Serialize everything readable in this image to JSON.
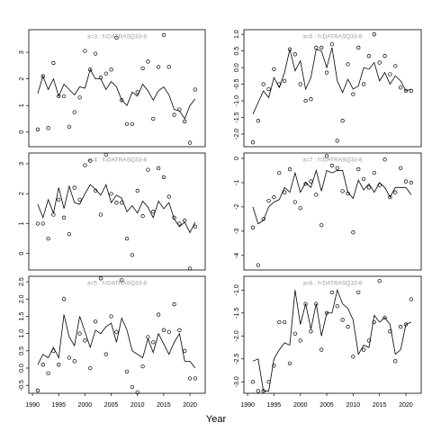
{
  "xlabel": "Year",
  "chart_data": [
    {
      "type": "line",
      "title": "a=3 : f=DATRASQ33-8",
      "x": [
        1991,
        1992,
        1993,
        1994,
        1995,
        1996,
        1997,
        1998,
        1999,
        2000,
        2001,
        2002,
        2003,
        2004,
        2005,
        2006,
        2007,
        2008,
        2009,
        2010,
        2011,
        2012,
        2013,
        2014,
        2015,
        2016,
        2017,
        2018,
        2019,
        2020,
        2021
      ],
      "xlim": [
        1989.3,
        2022.9
      ],
      "ylim": [
        -0.55,
        3.85
      ],
      "yticks": [
        0,
        1,
        2,
        3
      ],
      "series": [
        {
          "mark": "point",
          "color": "#000000",
          "values": [
            0.1,
            2.1,
            0.15,
            2.6,
            1.35,
            1.35,
            0.2,
            0.75,
            1.3,
            3.05,
            2.35,
            2.95,
            2.05,
            2.2,
            2.35,
            3.55,
            1.2,
            0.3,
            0.3,
            1.5,
            2.4,
            2.65,
            0.5,
            2.45,
            3.65,
            2.45,
            0.65,
            0.85,
            0.4,
            -0.4,
            1.6
          ]
        },
        {
          "mark": "line",
          "color": "#000000",
          "values": [
            1.45,
            2.1,
            1.6,
            2.0,
            1.35,
            1.8,
            1.6,
            1.4,
            1.7,
            1.65,
            2.35,
            2.0,
            2.0,
            1.6,
            1.9,
            1.7,
            1.2,
            1.0,
            1.5,
            1.35,
            1.8,
            1.55,
            1.2,
            1.55,
            1.7,
            1.4,
            0.85,
            0.8,
            0.5,
            1.0,
            1.25
          ]
        }
      ]
    },
    {
      "type": "line",
      "title": "a=6 : f=DATRASQ33-8",
      "x": [
        1991,
        1992,
        1993,
        1994,
        1995,
        1996,
        1997,
        1998,
        1999,
        2000,
        2001,
        2002,
        2003,
        2004,
        2005,
        2006,
        2007,
        2008,
        2009,
        2010,
        2011,
        2012,
        2013,
        2014,
        2015,
        2016,
        2017,
        2018,
        2019,
        2020,
        2021
      ],
      "xlim": [
        1989.3,
        2022.9
      ],
      "ylim": [
        -2.38,
        1.14
      ],
      "yticks": [
        {
          "value": 1,
          "label": "1.0"
        },
        0.5,
        {
          "value": 0,
          "label": "0.0"
        },
        -0.5,
        {
          "value": -1,
          "label": "-1.0"
        },
        -1.5,
        {
          "value": -2,
          "label": "-2.0"
        }
      ],
      "series": [
        {
          "mark": "point",
          "color": "#000000",
          "values": [
            -2.25,
            -1.6,
            -0.5,
            -0.65,
            -0.05,
            -0.5,
            -0.4,
            0.55,
            0.4,
            -0.5,
            -1.0,
            -0.95,
            0.6,
            0.6,
            -0.15,
            0.7,
            -2.2,
            -1.6,
            0.1,
            -0.8,
            0.6,
            -0.5,
            0.35,
            1.0,
            0.15,
            0.35,
            -0.2,
            0.05,
            -0.6,
            -0.7,
            -0.7
          ]
        },
        {
          "mark": "line",
          "color": "#000000",
          "values": [
            -1.4,
            -1.05,
            -0.7,
            -0.9,
            -0.3,
            -0.6,
            -0.15,
            0.55,
            -0.1,
            0.2,
            -0.65,
            -0.3,
            0.55,
            0.5,
            0.0,
            0.6,
            -0.4,
            -0.75,
            -0.35,
            -0.65,
            -0.55,
            0.0,
            -0.05,
            0.15,
            -0.4,
            -0.15,
            -0.5,
            -0.25,
            -0.4,
            -0.7,
            -0.65
          ]
        }
      ]
    },
    {
      "type": "line",
      "title": "a=4 : f=DATRASQ33-8",
      "x": [
        1991,
        1992,
        1993,
        1994,
        1995,
        1996,
        1997,
        1998,
        1999,
        2000,
        2001,
        2002,
        2003,
        2004,
        2005,
        2006,
        2007,
        2008,
        2009,
        2010,
        2011,
        2012,
        2013,
        2014,
        2015,
        2016,
        2017,
        2018,
        2019,
        2020,
        2021
      ],
      "xlim": [
        1989.3,
        2022.9
      ],
      "ylim": [
        -0.55,
        3.36
      ],
      "yticks": [
        0,
        1,
        2,
        3
      ],
      "series": [
        {
          "mark": "point",
          "color": "#000000",
          "values": [
            1.0,
            1.0,
            0.5,
            1.3,
            1.8,
            1.2,
            0.65,
            2.2,
            1.8,
            2.95,
            3.1,
            2.1,
            1.3,
            3.3,
            2.0,
            1.7,
            1.7,
            0.5,
            -0.05,
            2.1,
            1.25,
            2.8,
            1.4,
            2.85,
            2.55,
            1.9,
            1.2,
            1.0,
            1.1,
            -0.5,
            0.9
          ]
        },
        {
          "mark": "line",
          "color": "#000000",
          "values": [
            1.65,
            1.2,
            1.8,
            1.35,
            2.2,
            1.5,
            2.25,
            1.7,
            1.65,
            2.0,
            2.3,
            2.15,
            1.95,
            2.3,
            1.7,
            1.95,
            1.85,
            1.4,
            1.6,
            1.35,
            1.75,
            1.55,
            1.2,
            1.75,
            1.5,
            1.7,
            1.15,
            0.9,
            1.05,
            0.7,
            1.05
          ]
        }
      ]
    },
    {
      "type": "line",
      "title": "a=7 : f=DATRASQ33-8",
      "x": [
        1991,
        1992,
        1993,
        1994,
        1995,
        1996,
        1997,
        1998,
        1999,
        2000,
        2001,
        2002,
        2003,
        2004,
        2005,
        2006,
        2007,
        2008,
        2009,
        2010,
        2011,
        2012,
        2013,
        2014,
        2015,
        2016,
        2017,
        2018,
        2019,
        2020,
        2021
      ],
      "xlim": [
        1989.3,
        2022.9
      ],
      "ylim": [
        -4.6,
        0.22
      ],
      "yticks": [
        0,
        -1,
        -2,
        -3,
        -4
      ],
      "series": [
        {
          "mark": "point",
          "color": "#000000",
          "values": [
            -2.85,
            -4.4,
            -2.5,
            -1.75,
            -1.6,
            -0.6,
            -1.4,
            -0.45,
            -1.8,
            -2.05,
            -1.05,
            -0.95,
            -1.5,
            -2.75,
            0.1,
            -0.3,
            -0.4,
            -1.35,
            -1.45,
            -3.05,
            -0.45,
            -0.85,
            -1.2,
            -0.6,
            -1.1,
            -0.05,
            -1.6,
            -1.4,
            -0.4,
            -0.95,
            -1.0
          ]
        },
        {
          "mark": "line",
          "color": "#000000",
          "values": [
            -2.0,
            -2.7,
            -2.55,
            -2.0,
            -1.8,
            -1.7,
            -1.2,
            -1.4,
            -0.6,
            -1.4,
            -1.0,
            -1.2,
            -0.5,
            -1.35,
            -0.5,
            -0.6,
            -0.5,
            -0.5,
            -1.4,
            -1.65,
            -0.9,
            -1.3,
            -1.05,
            -1.4,
            -1.0,
            -1.2,
            -1.6,
            -1.2,
            -1.2,
            -1.2,
            -1.5
          ]
        }
      ]
    },
    {
      "type": "line",
      "title": "a=5 : f=DATRASQ33-8",
      "x": [
        1991,
        1992,
        1993,
        1994,
        1995,
        1996,
        1997,
        1998,
        1999,
        2000,
        2001,
        2002,
        2003,
        2004,
        2005,
        2006,
        2007,
        2008,
        2009,
        2010,
        2011,
        2012,
        2013,
        2014,
        2015,
        2016,
        2017,
        2018,
        2019,
        2020,
        2021
      ],
      "xlim": [
        1989.3,
        2022.9
      ],
      "ylim": [
        -0.73,
        2.66
      ],
      "yticks": [
        -0.5,
        {
          "value": 0,
          "label": "0.0"
        },
        0.5,
        {
          "value": 1,
          "label": "1.0"
        },
        1.5,
        {
          "value": 2,
          "label": "2.0"
        },
        2.5
      ],
      "xticks": [
        1990,
        1995,
        2000,
        2005,
        2010,
        2015,
        2020
      ],
      "series": [
        {
          "mark": "point",
          "color": "#000000",
          "values": [
            -0.65,
            0.1,
            -0.15,
            0.5,
            0.1,
            2.0,
            0.3,
            0.2,
            1.0,
            0.8,
            0.0,
            1.35,
            2.6,
            0.4,
            1.5,
            1.05,
            2.55,
            -0.1,
            -0.55,
            -0.7,
            0.05,
            0.9,
            0.75,
            1.55,
            1.1,
            1.05,
            1.85,
            1.1,
            0.5,
            -0.3,
            -0.3
          ]
        },
        {
          "mark": "line",
          "color": "#000000",
          "values": [
            0.1,
            0.4,
            0.3,
            0.6,
            0.3,
            1.55,
            0.9,
            0.65,
            1.5,
            1.05,
            0.6,
            1.1,
            1.0,
            1.2,
            1.3,
            0.75,
            1.45,
            1.1,
            0.5,
            0.4,
            0.3,
            0.85,
            0.45,
            1.0,
            0.7,
            0.4,
            0.75,
            1.0,
            0.2,
            0.2,
            0.0
          ]
        }
      ]
    },
    {
      "type": "line",
      "title": "a=8 : f=DATRASQ33-8",
      "x": [
        1991,
        1992,
        1993,
        1994,
        1995,
        1996,
        1997,
        1998,
        1999,
        2000,
        2001,
        2002,
        2003,
        2004,
        2005,
        2006,
        2007,
        2008,
        2009,
        2010,
        2011,
        2012,
        2013,
        2014,
        2015,
        2016,
        2017,
        2018,
        2019,
        2020,
        2021
      ],
      "xlim": [
        1989.3,
        2022.9
      ],
      "ylim": [
        -3.25,
        -0.7
      ],
      "yticks": [
        {
          "value": -1,
          "label": "-1.0"
        },
        -1.5,
        {
          "value": -2,
          "label": "-2.0"
        },
        -2.5,
        {
          "value": -3,
          "label": "-3.0"
        }
      ],
      "xticks": [
        1990,
        1995,
        2000,
        2005,
        2010,
        2015,
        2020
      ],
      "series": [
        {
          "mark": "point",
          "color": "#000000",
          "values": [
            -3.0,
            -3.2,
            -3.2,
            -3.0,
            -2.65,
            -1.7,
            -1.7,
            -2.6,
            -1.95,
            -2.1,
            -1.3,
            -1.9,
            -1.3,
            -2.3,
            -1.5,
            -1.05,
            -1.35,
            -1.65,
            -1.8,
            -2.45,
            -1.05,
            -2.3,
            -2.1,
            -1.7,
            -0.8,
            -1.6,
            -1.9,
            -2.55,
            -1.8,
            -1.75,
            -1.2
          ]
        },
        {
          "mark": "line",
          "color": "#000000",
          "values": [
            -2.55,
            -2.5,
            -3.2,
            -3.2,
            -2.5,
            -2.3,
            -2.15,
            -2.2,
            -1.0,
            -1.75,
            -1.3,
            -1.85,
            -1.3,
            -2.0,
            -1.5,
            -1.5,
            -1.0,
            -1.3,
            -1.4,
            -1.65,
            -2.4,
            -2.2,
            -2.25,
            -1.55,
            -1.7,
            -1.6,
            -1.75,
            -2.4,
            -2.3,
            -1.75,
            -1.7
          ]
        }
      ]
    }
  ]
}
